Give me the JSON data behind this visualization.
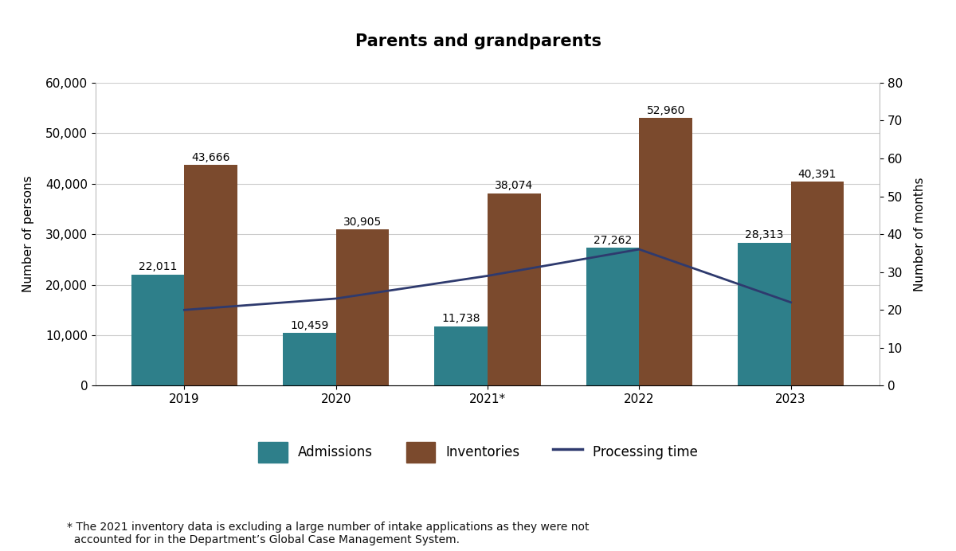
{
  "title": "Parents and grandparents",
  "title_fontsize": 15,
  "title_fontweight": "bold",
  "years": [
    "2019",
    "2020",
    "2021*",
    "2022",
    "2023"
  ],
  "admissions": [
    22011,
    10459,
    11738,
    27262,
    28313
  ],
  "inventories": [
    43666,
    30905,
    38074,
    52960,
    40391
  ],
  "processing_time": [
    20,
    23,
    29,
    36,
    22
  ],
  "bar_width": 0.35,
  "admissions_color": "#2e7f8a",
  "inventories_color": "#7b4a2d",
  "processing_time_color": "#2e3a6e",
  "ylabel_left": "Number of persons",
  "ylabel_right": "Number of months",
  "ylim_left": [
    0,
    60000
  ],
  "ylim_right": [
    0,
    80
  ],
  "yticks_left": [
    0,
    10000,
    20000,
    30000,
    40000,
    50000,
    60000
  ],
  "yticks_right": [
    0,
    10,
    20,
    30,
    40,
    50,
    60,
    70,
    80
  ],
  "ytick_labels_left": [
    "0",
    "10,000",
    "20,000",
    "30,000",
    "40,000",
    "50,000",
    "60,000"
  ],
  "ytick_labels_right": [
    "0",
    "10",
    "20",
    "30",
    "40",
    "50",
    "60",
    "70",
    "80"
  ],
  "legend_labels": [
    "Admissions",
    "Inventories",
    "Processing time"
  ],
  "footnote_line1": "* The 2021 inventory data is excluding a large number of intake applications as they were not",
  "footnote_line2": "  accounted for in the Department’s Global Case Management System.",
  "background_color": "#ffffff",
  "grid_color": "#cccccc",
  "label_fontsize": 10,
  "tick_fontsize": 11,
  "axis_label_fontsize": 11
}
